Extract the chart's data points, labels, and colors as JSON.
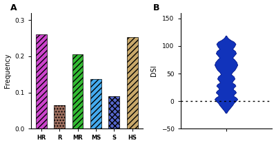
{
  "categories": [
    "HR",
    "R",
    "MR",
    "MS",
    "S",
    "HS"
  ],
  "values": [
    0.26,
    0.065,
    0.205,
    0.137,
    0.09,
    0.253
  ],
  "bar_colors": [
    "#CC44CC",
    "#A07060",
    "#33BB33",
    "#44AAEE",
    "#5566CC",
    "#C8A86A"
  ],
  "hatch_patterns": [
    "////",
    "....",
    "////",
    "////",
    "xxxx",
    "////"
  ],
  "ylabel_bar": "Frequency",
  "ylim_bar": [
    0,
    0.32
  ],
  "yticks_bar": [
    0.0,
    0.1,
    0.2,
    0.3
  ],
  "violin_color": "#1133BB",
  "violin_edge_color": "#001488",
  "ylabel_violin": "DSI",
  "ylim_violin": [
    -50,
    160
  ],
  "yticks_violin": [
    -50,
    0,
    50,
    100,
    150
  ],
  "dotted_line_y": 0,
  "panel_a_label": "A",
  "panel_b_label": "B",
  "bg_color": "#FFFFFF"
}
